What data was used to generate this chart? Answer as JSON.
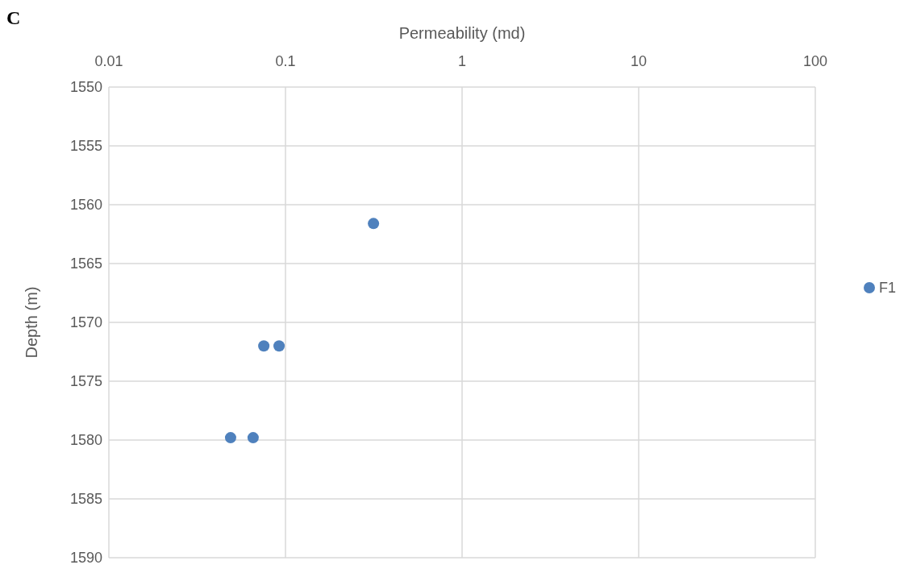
{
  "chart_data": {
    "type": "scatter",
    "title": "C",
    "xlabel": "Permeability (md)",
    "ylabel": "Depth (m)",
    "log": "x",
    "xlim": [
      0.01,
      100
    ],
    "xticks": [
      0.01,
      0.1,
      1,
      10,
      100
    ],
    "ylim": [
      1590,
      1550
    ],
    "yticks": [
      1550,
      1555,
      1560,
      1565,
      1570,
      1575,
      1580,
      1585,
      1590
    ],
    "grid": true,
    "legend": "right",
    "marker": "circle",
    "series": [
      {
        "name": "F1",
        "color": "#4f81bd",
        "x": [
          0.315,
          0.0754,
          0.092,
          0.0489,
          0.0656
        ],
        "values": [
          1561.6,
          1572.0,
          1572.0,
          1579.8,
          1579.8
        ]
      }
    ]
  }
}
